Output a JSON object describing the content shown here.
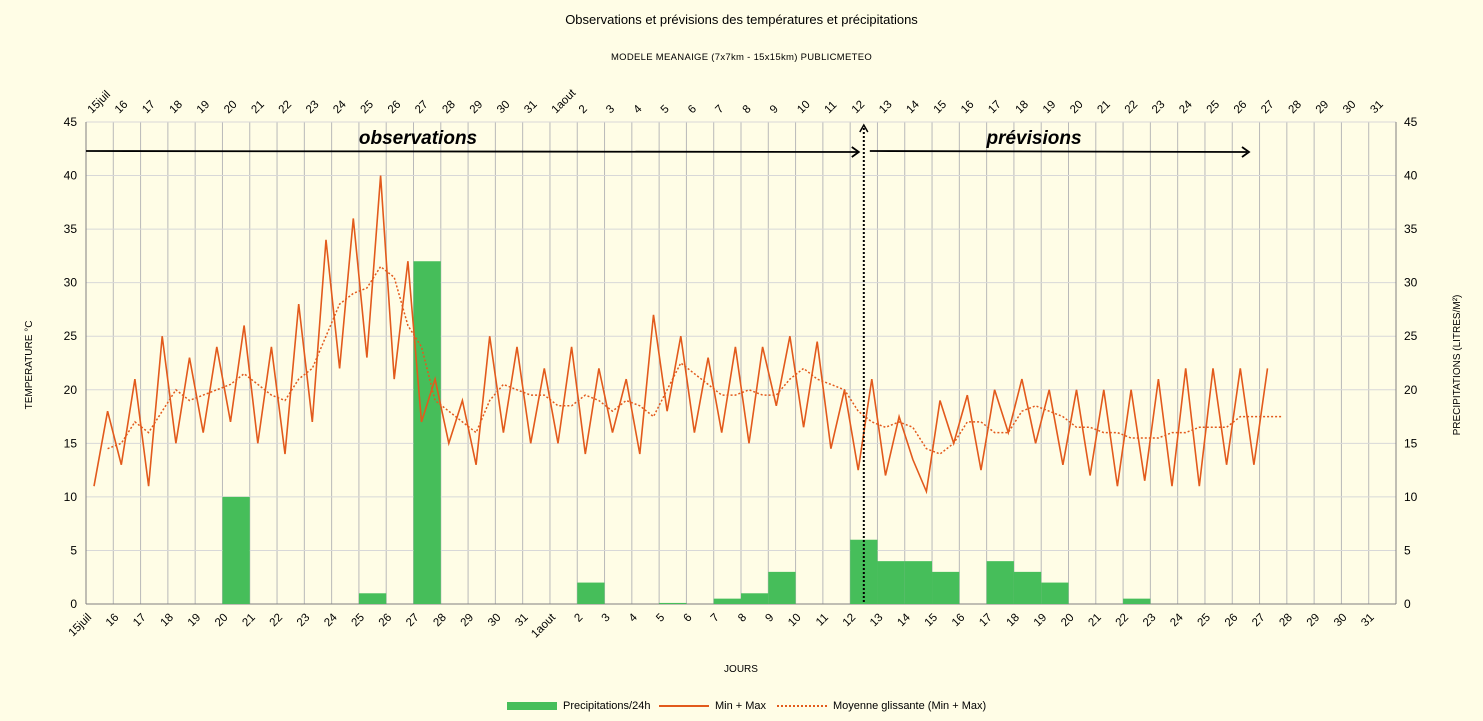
{
  "title": "Observations et prévisions des températures et précipitations",
  "subtitle": "MODELE MEANAIGE (7x7km - 15x15km) PUBLICMETEO",
  "colors": {
    "background": "#fffde6",
    "precip": "#46be5a",
    "temp": "#e25a1c",
    "grid": "#b9b9b9"
  },
  "chart_data": {
    "type": "bar+line",
    "title": "Observations et prévisions des températures et précipitations",
    "subtitle": "MODELE MEANAIGE (7x7km - 15x15km) PUBLICMETEO",
    "xlabel": "JOURS",
    "ylabel_left": "TEMPERATURE °C",
    "ylabel_right": "PRECIPITATIONS (LITRES/M²)",
    "ylim": [
      0,
      45
    ],
    "yticks": [
      0,
      5,
      10,
      15,
      20,
      25,
      30,
      35,
      40,
      45
    ],
    "grid": true,
    "legend_position": "bottom",
    "x_tick_labels": [
      "15juil",
      "16",
      "17",
      "18",
      "19",
      "20",
      "21",
      "22",
      "23",
      "24",
      "25",
      "26",
      "27",
      "28",
      "29",
      "30",
      "31",
      "1aout",
      "2",
      "3",
      "4",
      "5",
      "6",
      "7",
      "8",
      "9",
      "10",
      "11",
      "12",
      "13",
      "14",
      "15",
      "16",
      "17",
      "18",
      "19",
      "20",
      "21",
      "22",
      "23",
      "24",
      "25",
      "26",
      "27",
      "28",
      "29",
      "30",
      "31"
    ],
    "annotations": {
      "observations": "observations",
      "previsions": "prévisions",
      "separator_date": "12"
    },
    "series": [
      {
        "name": "Precipitations/24h",
        "type": "bar",
        "values": [
          0,
          0,
          0,
          0,
          0,
          10,
          0,
          0,
          0,
          0,
          1,
          0,
          32,
          0,
          0,
          0,
          0,
          0,
          2,
          0,
          0,
          0.1,
          0,
          0.5,
          1,
          3,
          0,
          0,
          6,
          4,
          4,
          3,
          0,
          4,
          3,
          2,
          0,
          0,
          0.5,
          0,
          0,
          0,
          0,
          0,
          0,
          0,
          0,
          0
        ]
      },
      {
        "name": "Min + Max",
        "type": "line",
        "values": [
          11,
          18,
          13,
          21,
          11,
          25,
          15,
          23,
          16,
          24,
          17,
          26,
          15,
          24,
          14,
          28,
          17,
          34,
          22,
          36,
          23,
          40,
          21,
          32,
          17,
          21,
          15,
          19,
          13,
          25,
          16,
          24,
          15,
          22,
          15,
          24,
          14,
          22,
          16,
          21,
          14,
          27,
          18,
          25,
          16,
          23,
          16,
          24,
          15,
          24,
          18.5,
          25,
          16.5,
          24.5,
          14.5,
          20,
          12.5,
          21,
          12,
          17.5,
          13.5,
          10.5,
          19,
          15,
          19.5,
          12.5,
          20,
          16,
          21,
          15,
          20,
          13,
          20,
          12,
          20,
          11,
          20,
          11.5,
          21,
          11,
          22,
          11,
          22,
          13,
          22,
          13,
          22
        ]
      },
      {
        "name": "Moyenne glissante (Min + Max)",
        "type": "line-dotted",
        "values": [
          null,
          14.5,
          15,
          17,
          16,
          18,
          20,
          19,
          19.5,
          20,
          20.5,
          21.5,
          20.5,
          19.5,
          19,
          21,
          22,
          25,
          28,
          29,
          29.5,
          31.5,
          30.5,
          26,
          24,
          19,
          18,
          17,
          16,
          19,
          20.5,
          20,
          19.5,
          19.5,
          18.5,
          18.5,
          19.5,
          19,
          18,
          19,
          18.5,
          17.5,
          20,
          22.5,
          21.5,
          20.5,
          19.5,
          19.5,
          20,
          19.5,
          19.5,
          21,
          22,
          21,
          20.5,
          20,
          18,
          17,
          16.5,
          17,
          16.5,
          14.5,
          14,
          15,
          17,
          17,
          16,
          16,
          18,
          18.5,
          18,
          17.5,
          16.5,
          16.5,
          16,
          16,
          15.5,
          15.5,
          15.5,
          16,
          16,
          16.5,
          16.5,
          16.5,
          17.5,
          17.5,
          17.5,
          17.5
        ]
      }
    ]
  },
  "legend": {
    "precip": "Precipitations/24h",
    "minmax": "Min + Max",
    "moyenne": "Moyenne glissante (Min + Max)"
  }
}
